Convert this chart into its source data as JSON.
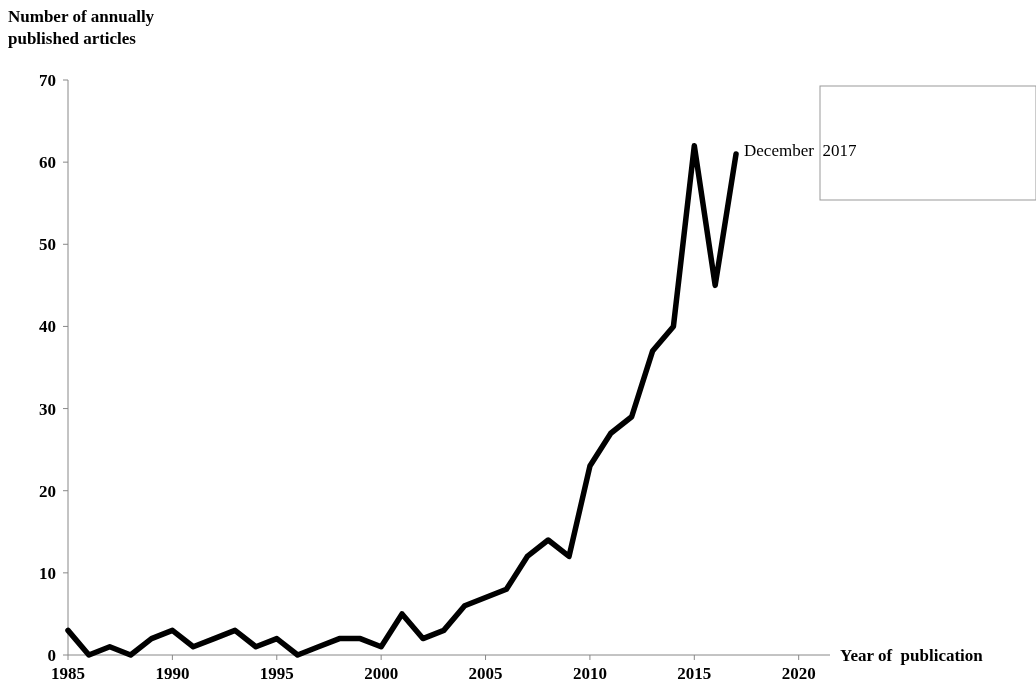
{
  "chart_data": {
    "type": "line",
    "xlabel": "Year of  publication",
    "ylabel": "Number of annually published articles",
    "x": [
      1985,
      1986,
      1987,
      1988,
      1989,
      1990,
      1991,
      1992,
      1993,
      1994,
      1995,
      1996,
      1997,
      1998,
      1999,
      2000,
      2001,
      2002,
      2003,
      2004,
      2005,
      2006,
      2007,
      2008,
      2009,
      2010,
      2011,
      2012,
      2013,
      2014,
      2015,
      2016,
      2017
    ],
    "series": [
      {
        "color": "#000000",
        "values": [
          3,
          0,
          1,
          0,
          2,
          3,
          1,
          2,
          3,
          1,
          2,
          0,
          1,
          2,
          2,
          1,
          5,
          2,
          3,
          6,
          7,
          8,
          12,
          14,
          12,
          23,
          27,
          29,
          37,
          40,
          62,
          45,
          61
        ]
      }
    ],
    "xlim": [
      1985,
      2021.5
    ],
    "xticks": [
      1985,
      1990,
      1995,
      2000,
      2005,
      2010,
      2015,
      2020
    ],
    "ylim": [
      0,
      70
    ],
    "yticks": [
      0,
      10,
      20,
      30,
      40,
      50,
      60,
      70
    ],
    "annotations": [
      {
        "text": "December  2017",
        "x": 2017,
        "y": 61
      }
    ],
    "grid": false,
    "marker": "none",
    "line_style": "solid"
  }
}
